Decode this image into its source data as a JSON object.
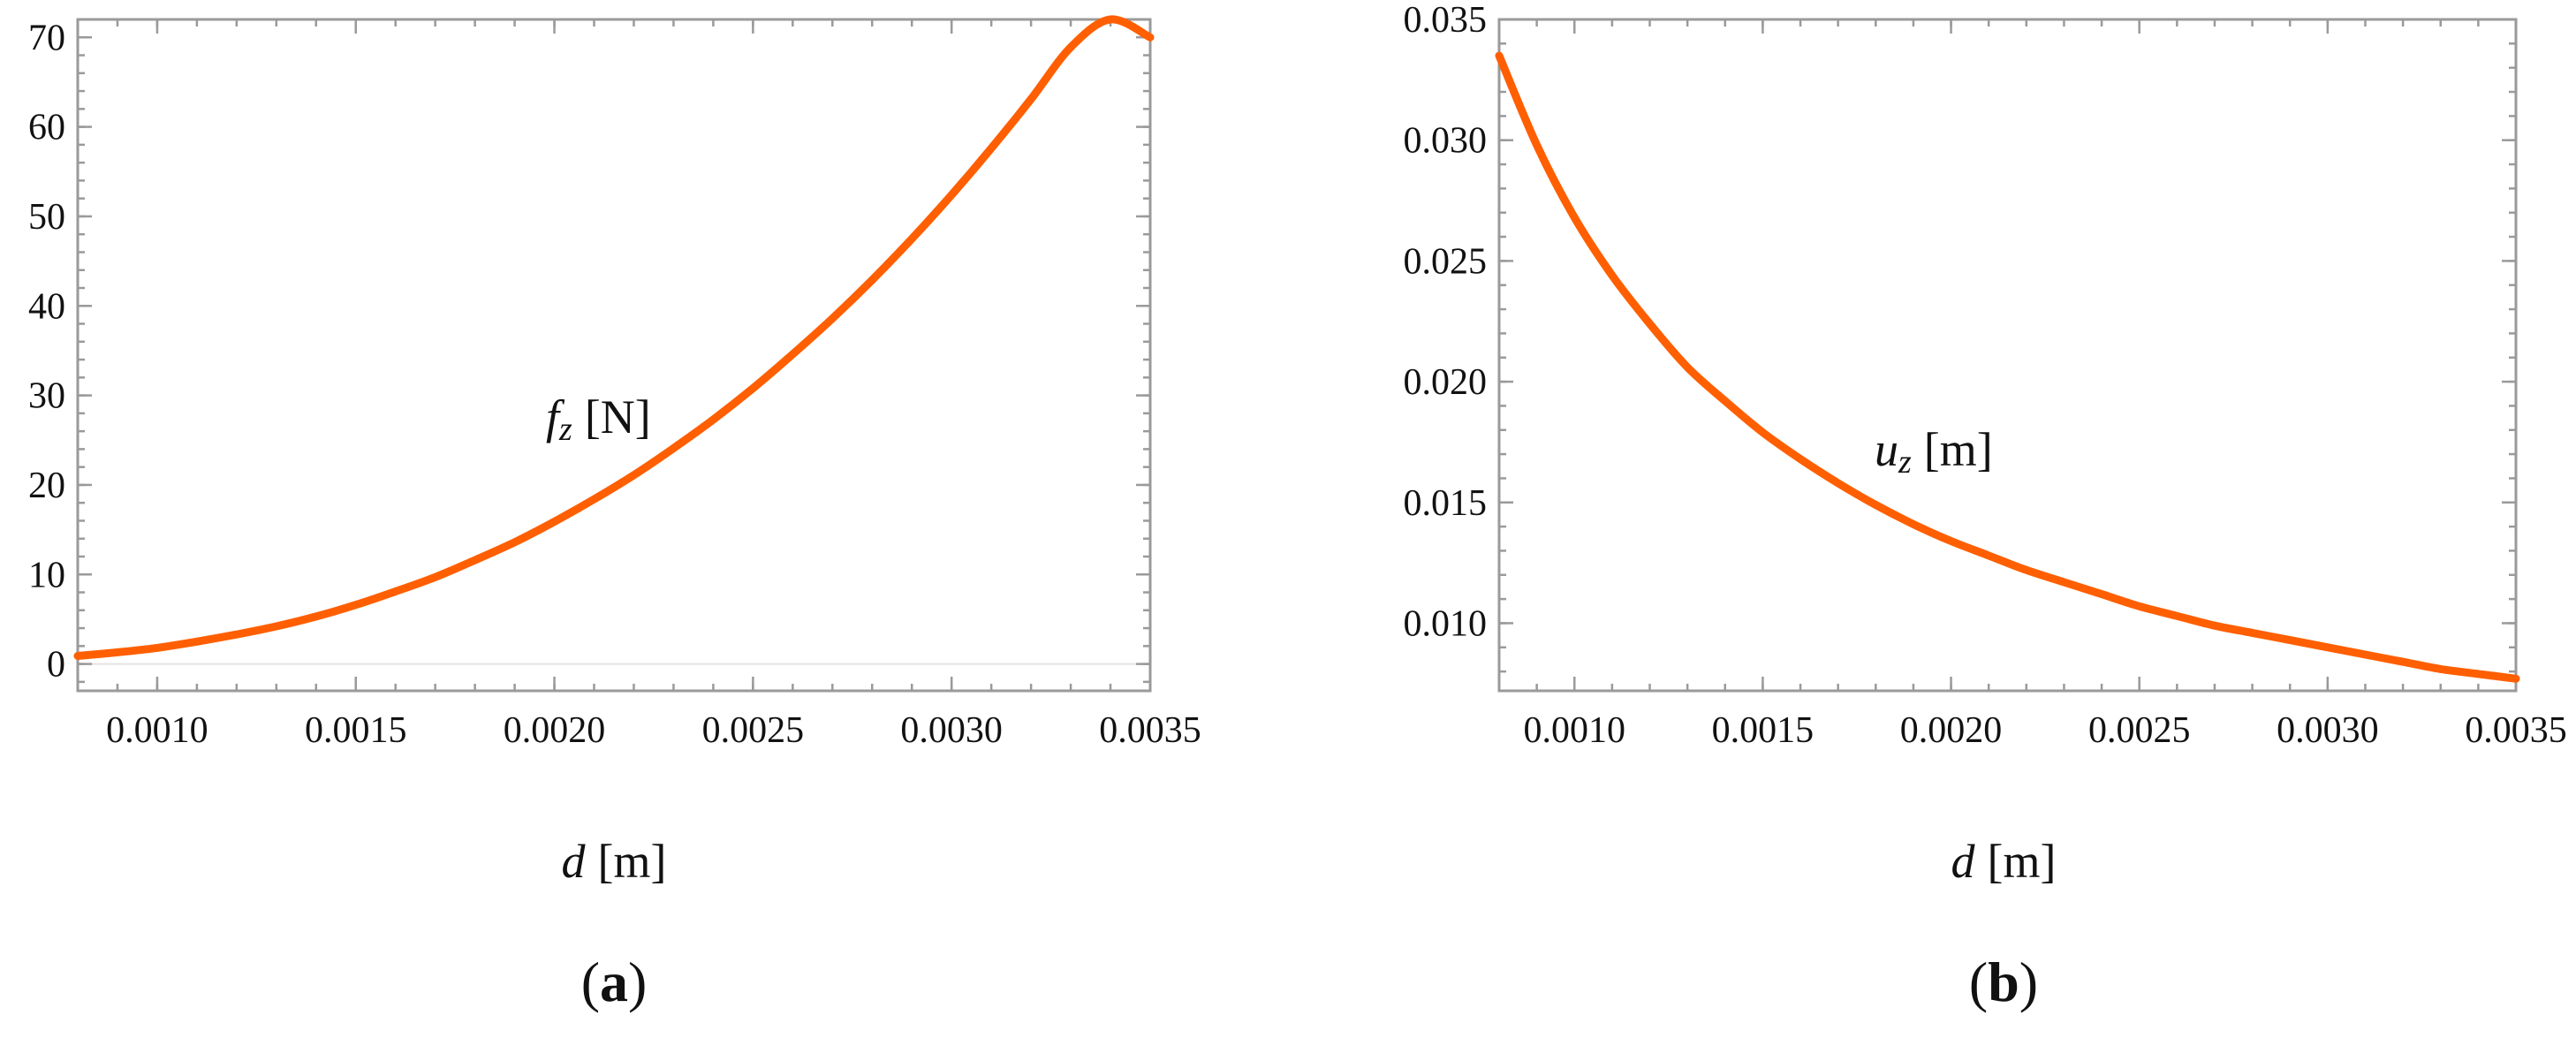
{
  "chart_data": [
    {
      "type": "line",
      "panel_label": {
        "open": "(",
        "letter": "a",
        "close": ")"
      },
      "xlabel": {
        "var": "d",
        "unit": "[m]"
      },
      "annotation": {
        "base": "f",
        "sub": "z",
        "unit": "[N]"
      },
      "xlim": [
        0.0008,
        0.0035
      ],
      "ylim": [
        -3,
        72
      ],
      "xticks": [
        {
          "value": 0.001,
          "label": "0.0010"
        },
        {
          "value": 0.0015,
          "label": "0.0015"
        },
        {
          "value": 0.002,
          "label": "0.0020"
        },
        {
          "value": 0.0025,
          "label": "0.0025"
        },
        {
          "value": 0.003,
          "label": "0.0030"
        },
        {
          "value": 0.0035,
          "label": "0.0035"
        }
      ],
      "yticks": [
        {
          "value": 0,
          "label": "0"
        },
        {
          "value": 10,
          "label": "10"
        },
        {
          "value": 20,
          "label": "20"
        },
        {
          "value": 30,
          "label": "30"
        },
        {
          "value": 40,
          "label": "40"
        },
        {
          "value": 50,
          "label": "50"
        },
        {
          "value": 60,
          "label": "60"
        },
        {
          "value": 70,
          "label": "70"
        }
      ],
      "series": [
        {
          "color": "#ff5f00",
          "x": [
            0.0008,
            0.0009,
            0.001,
            0.0011,
            0.0012,
            0.0013,
            0.0014,
            0.0015,
            0.0016,
            0.0017,
            0.0018,
            0.0019,
            0.002,
            0.0021,
            0.0022,
            0.0023,
            0.0024,
            0.0025,
            0.0026,
            0.0027,
            0.0028,
            0.0029,
            0.003,
            0.0031,
            0.0032,
            0.0033,
            0.0034,
            0.0035
          ],
          "y": [
            0.9,
            1.3,
            1.8,
            2.5,
            3.3,
            4.2,
            5.3,
            6.6,
            8.1,
            9.7,
            11.6,
            13.6,
            15.9,
            18.4,
            21.1,
            24.1,
            27.3,
            30.8,
            34.6,
            38.6,
            42.9,
            47.5,
            52.4,
            57.6,
            63.1,
            68.9,
            75.0,
            70.0
          ]
        }
      ]
    },
    {
      "type": "line",
      "panel_label": {
        "open": "(",
        "letter": "b",
        "close": ")"
      },
      "xlabel": {
        "var": "d",
        "unit": "[m]"
      },
      "annotation": {
        "base": "u",
        "sub": "z",
        "unit": "[m]"
      },
      "xlim": [
        0.0008,
        0.0035
      ],
      "ylim": [
        0.0072,
        0.035
      ],
      "xticks": [
        {
          "value": 0.001,
          "label": "0.0010"
        },
        {
          "value": 0.0015,
          "label": "0.0015"
        },
        {
          "value": 0.002,
          "label": "0.0020"
        },
        {
          "value": 0.0025,
          "label": "0.0025"
        },
        {
          "value": 0.003,
          "label": "0.0030"
        },
        {
          "value": 0.0035,
          "label": "0.0035"
        }
      ],
      "yticks": [
        {
          "value": 0.01,
          "label": "0.010"
        },
        {
          "value": 0.015,
          "label": "0.015"
        },
        {
          "value": 0.02,
          "label": "0.020"
        },
        {
          "value": 0.025,
          "label": "0.025"
        },
        {
          "value": 0.03,
          "label": "0.030"
        },
        {
          "value": 0.035,
          "label": "0.035"
        }
      ],
      "series": [
        {
          "color": "#ff5f00",
          "x": [
            0.0008,
            0.0009,
            0.001,
            0.0011,
            0.0012,
            0.0013,
            0.0014,
            0.0015,
            0.0016,
            0.0017,
            0.0018,
            0.0019,
            0.002,
            0.0021,
            0.0022,
            0.0023,
            0.0024,
            0.0025,
            0.0026,
            0.0027,
            0.0028,
            0.0029,
            0.003,
            0.0031,
            0.0032,
            0.0033,
            0.0034,
            0.0035
          ],
          "y": [
            0.0335,
            0.0298,
            0.0268,
            0.0244,
            0.0224,
            0.0206,
            0.0192,
            0.0179,
            0.0168,
            0.0158,
            0.0149,
            0.0141,
            0.0134,
            0.0128,
            0.0122,
            0.0117,
            0.0112,
            0.0107,
            0.0103,
            0.0099,
            0.0096,
            0.0093,
            0.009,
            0.0087,
            0.0084,
            0.0081,
            0.0079,
            0.0077
          ]
        }
      ]
    }
  ]
}
